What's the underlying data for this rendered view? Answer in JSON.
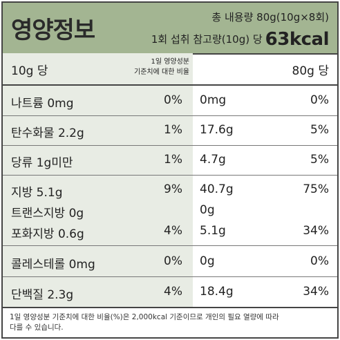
{
  "header": {
    "title": "영양정보",
    "total_content": "총 내용량 80g(10g×8회)",
    "serving_text": "1회 섭취 참고량(10g) 당",
    "serving_kcal": "63kcal"
  },
  "columns": {
    "basis": "10g 당",
    "dv_note_line1": "1일 영양성분",
    "dv_note_line2": "기준치에 대한 비율",
    "total_basis": "80g 당"
  },
  "rows": [
    {
      "name": "나트륨 0mg",
      "pct": "0%",
      "amount_total": "0mg",
      "pct_total": "0%"
    },
    {
      "name": "탄수화물 2.2g",
      "pct": "1%",
      "amount_total": "17.6g",
      "pct_total": "5%"
    },
    {
      "name": "당류 1g미만",
      "pct": "1%",
      "amount_total": "4.7g",
      "pct_total": "5%"
    },
    {
      "name": "지방 5.1g",
      "pct": "9%",
      "amount_total": "40.7g",
      "pct_total": "75%"
    },
    {
      "name": "트랜스지방 0g",
      "pct": "",
      "amount_total": "0g",
      "pct_total": ""
    },
    {
      "name": "포화지방 0.6g",
      "pct": "4%",
      "amount_total": "5.1g",
      "pct_total": "34%"
    },
    {
      "name": "콜레스테롤 0mg",
      "pct": "0%",
      "amount_total": "0g",
      "pct_total": "0%"
    },
    {
      "name": "단백질 2.3g",
      "pct": "4%",
      "amount_total": "18.4g",
      "pct_total": "34%"
    }
  ],
  "footnote_line1": "1일 영양성분 기준치에 대한 비율(%)은 2,000kcal 기준이므로 개인의 필요 열량에 따라",
  "footnote_line2": "다를 수 있습니다."
}
